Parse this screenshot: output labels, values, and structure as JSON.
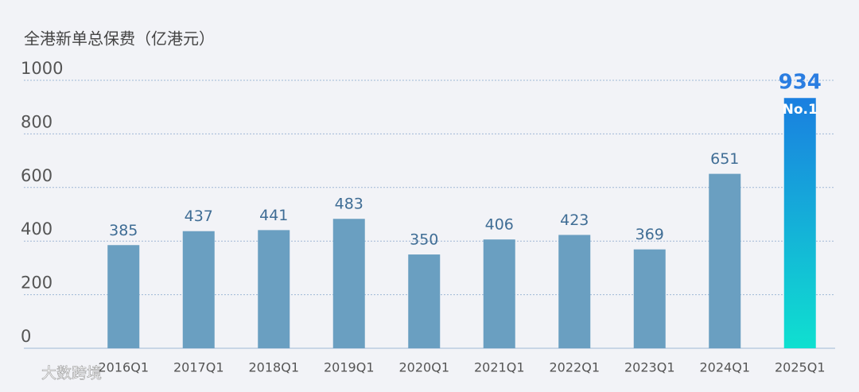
{
  "chart_data": {
    "type": "bar",
    "title": "全港新单总保费（亿港元）",
    "categories": [
      "2016Q1",
      "2017Q1",
      "2018Q1",
      "2019Q1",
      "2020Q1",
      "2021Q1",
      "2022Q1",
      "2023Q1",
      "2024Q1",
      "2025Q1"
    ],
    "values": [
      385,
      437,
      441,
      483,
      350,
      406,
      423,
      369,
      651,
      934
    ],
    "color": "#6a9fc1",
    "highlight": {
      "category": "2025Q1",
      "annotation": "No.1",
      "colors": [
        "#1a7fe0",
        "#0fe0d0"
      ],
      "label_color": "#2a7de1"
    },
    "ylim": [
      0,
      1000
    ],
    "yticks": [
      0,
      200,
      400,
      600,
      800,
      1000
    ],
    "grid": true,
    "watermark": "大数跨境"
  }
}
